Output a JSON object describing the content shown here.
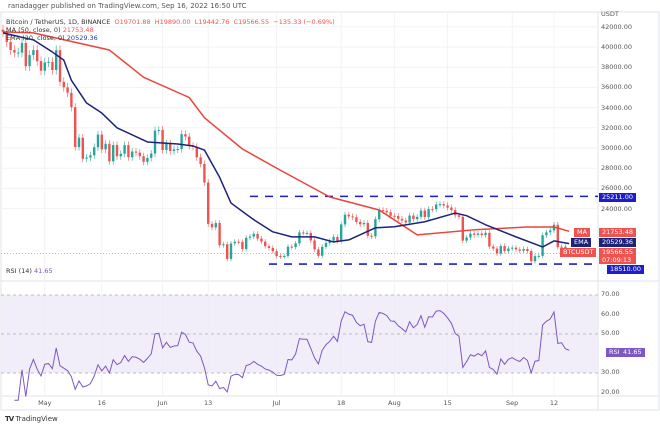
{
  "header": "ranadagger published on TradingView.com, Sep 16, 2022 16:50 UTC",
  "legend": {
    "symbol": "Bitcoin / TetherUS, 1D, BINANCE",
    "o": "O19701.88",
    "h": "H19890.00",
    "l": "L19442.76",
    "c": "C19566.55",
    "chg": "−135.33 (−0.69%)",
    "ma_label": "MA (50, close, 0)",
    "ma_value": "21753.48",
    "ema_label": "EMA (20, close, 0)",
    "ema_value": "20529.36",
    "rsi_label": "RSI (14)",
    "rsi_value": "41.65"
  },
  "currency": "USDT",
  "tags": {
    "resistance": "25211.00",
    "support": "18510.00",
    "ma_tag": "MA",
    "ma": "21753.48",
    "ema_tag": "EMA",
    "ema": "20529.36",
    "sym_tag": "BTCUSDT",
    "price": "19566.55",
    "countdown": "07:09:13",
    "rsi_tag": "RSI",
    "rsi": "41.65"
  },
  "logo": "TradingView",
  "colors": {
    "up": "#26a69a",
    "down": "#ef5350",
    "ma": "#e8453c",
    "ema": "#1b237a",
    "levels": "#1e1ec8",
    "rsi": "#7e57c2",
    "rsi_band": "#ede7f6"
  },
  "chart_data": [
    {
      "type": "candlestick",
      "ylim": [
        17000,
        43000
      ],
      "y_ticks": [
        "42000.00",
        "40000.00",
        "38000.00",
        "36000.00",
        "34000.00",
        "32000.00",
        "30000.00",
        "28000.00",
        "26000.00",
        "24000.00"
      ],
      "x_ticks": [
        [
          "2022-05-01",
          "May"
        ],
        [
          "2022-05-16",
          "16"
        ],
        [
          "2022-06-01",
          "Jun"
        ],
        [
          "2022-06-13",
          "13"
        ],
        [
          "2022-07-01",
          "Jul"
        ],
        [
          "2022-07-18",
          "18"
        ],
        [
          "2022-08-01",
          "Aug"
        ],
        [
          "2022-08-15",
          "15"
        ],
        [
          "2022-09-01",
          "Sep"
        ],
        [
          "2022-09-12",
          "12"
        ]
      ],
      "horizontal_levels": [
        {
          "value": 25211,
          "from": "2022-06-24"
        },
        {
          "value": 18510,
          "from": "2022-06-29"
        }
      ],
      "closes": [
        [
          "2022-04-20",
          41500
        ],
        [
          "2022-04-21",
          40500
        ],
        [
          "2022-04-22",
          39700
        ],
        [
          "2022-04-23",
          39450
        ],
        [
          "2022-04-24",
          39450
        ],
        [
          "2022-04-25",
          40400
        ],
        [
          "2022-04-26",
          38100
        ],
        [
          "2022-04-27",
          39200
        ],
        [
          "2022-04-28",
          39700
        ],
        [
          "2022-04-29",
          38600
        ],
        [
          "2022-04-30",
          37650
        ],
        [
          "2022-05-01",
          38470
        ],
        [
          "2022-05-02",
          38520
        ],
        [
          "2022-05-03",
          37720
        ],
        [
          "2022-05-04",
          39690
        ],
        [
          "2022-05-05",
          36550
        ],
        [
          "2022-05-06",
          36010
        ],
        [
          "2022-05-07",
          35470
        ],
        [
          "2022-05-08",
          34040
        ],
        [
          "2022-05-09",
          30100
        ],
        [
          "2022-05-10",
          31020
        ],
        [
          "2022-05-11",
          28940
        ],
        [
          "2022-05-12",
          29050
        ],
        [
          "2022-05-13",
          29280
        ],
        [
          "2022-05-14",
          30080
        ],
        [
          "2022-05-15",
          31330
        ],
        [
          "2022-05-16",
          29860
        ],
        [
          "2022-05-17",
          30420
        ],
        [
          "2022-05-18",
          28680
        ],
        [
          "2022-05-19",
          30290
        ],
        [
          "2022-05-20",
          29180
        ],
        [
          "2022-05-21",
          29430
        ],
        [
          "2022-05-22",
          30280
        ],
        [
          "2022-05-23",
          29090
        ],
        [
          "2022-05-24",
          29650
        ],
        [
          "2022-05-25",
          29540
        ],
        [
          "2022-05-26",
          29190
        ],
        [
          "2022-05-27",
          28630
        ],
        [
          "2022-05-28",
          29020
        ],
        [
          "2022-05-29",
          29450
        ],
        [
          "2022-05-30",
          31720
        ],
        [
          "2022-05-31",
          31790
        ],
        [
          "2022-06-01",
          29800
        ],
        [
          "2022-06-02",
          30450
        ],
        [
          "2022-06-03",
          29700
        ],
        [
          "2022-06-04",
          29860
        ],
        [
          "2022-06-05",
          29900
        ],
        [
          "2022-06-06",
          31370
        ],
        [
          "2022-06-07",
          31130
        ],
        [
          "2022-06-08",
          30200
        ],
        [
          "2022-06-09",
          30110
        ],
        [
          "2022-06-10",
          29080
        ],
        [
          "2022-06-11",
          28420
        ],
        [
          "2022-06-12",
          26580
        ],
        [
          "2022-06-13",
          22490
        ],
        [
          "2022-06-14",
          22140
        ],
        [
          "2022-06-15",
          22580
        ],
        [
          "2022-06-16",
          20380
        ],
        [
          "2022-06-17",
          20470
        ],
        [
          "2022-06-18",
          19020
        ],
        [
          "2022-06-19",
          20550
        ],
        [
          "2022-06-20",
          20720
        ],
        [
          "2022-06-21",
          20710
        ],
        [
          "2022-06-22",
          19990
        ],
        [
          "2022-06-23",
          21110
        ],
        [
          "2022-06-24",
          21230
        ],
        [
          "2022-06-25",
          21500
        ],
        [
          "2022-06-26",
          21030
        ],
        [
          "2022-06-27",
          20730
        ],
        [
          "2022-06-28",
          20280
        ],
        [
          "2022-06-29",
          20100
        ],
        [
          "2022-06-30",
          19780
        ],
        [
          "2022-07-01",
          19300
        ],
        [
          "2022-07-02",
          19250
        ],
        [
          "2022-07-03",
          19310
        ],
        [
          "2022-07-04",
          20230
        ],
        [
          "2022-07-05",
          20190
        ],
        [
          "2022-07-06",
          20560
        ],
        [
          "2022-07-07",
          21640
        ],
        [
          "2022-07-08",
          21590
        ],
        [
          "2022-07-09",
          21590
        ],
        [
          "2022-07-10",
          20850
        ],
        [
          "2022-07-11",
          19960
        ],
        [
          "2022-07-12",
          19330
        ],
        [
          "2022-07-13",
          20210
        ],
        [
          "2022-07-14",
          20590
        ],
        [
          "2022-07-15",
          20830
        ],
        [
          "2022-07-16",
          21190
        ],
        [
          "2022-07-17",
          20790
        ],
        [
          "2022-07-18",
          22430
        ],
        [
          "2022-07-19",
          23400
        ],
        [
          "2022-07-20",
          23230
        ],
        [
          "2022-07-21",
          23150
        ],
        [
          "2022-07-22",
          22680
        ],
        [
          "2022-07-23",
          22450
        ],
        [
          "2022-07-24",
          22580
        ],
        [
          "2022-07-25",
          21310
        ],
        [
          "2022-07-26",
          21250
        ],
        [
          "2022-07-27",
          22950
        ],
        [
          "2022-07-28",
          23850
        ],
        [
          "2022-07-29",
          23780
        ],
        [
          "2022-07-30",
          23640
        ],
        [
          "2022-07-31",
          23290
        ],
        [
          "2022-08-01",
          23270
        ],
        [
          "2022-08-02",
          22990
        ],
        [
          "2022-08-03",
          22820
        ],
        [
          "2022-08-04",
          22620
        ],
        [
          "2022-08-05",
          23310
        ],
        [
          "2022-08-06",
          22960
        ],
        [
          "2022-08-07",
          23180
        ],
        [
          "2022-08-08",
          23810
        ],
        [
          "2022-08-09",
          23160
        ],
        [
          "2022-08-10",
          23950
        ],
        [
          "2022-08-11",
          23940
        ],
        [
          "2022-08-12",
          24400
        ],
        [
          "2022-08-13",
          24440
        ],
        [
          "2022-08-14",
          24310
        ],
        [
          "2022-08-15",
          24100
        ],
        [
          "2022-08-16",
          23850
        ],
        [
          "2022-08-17",
          23340
        ],
        [
          "2022-08-18",
          23190
        ],
        [
          "2022-08-19",
          20830
        ],
        [
          "2022-08-20",
          21140
        ],
        [
          "2022-08-21",
          21520
        ],
        [
          "2022-08-22",
          21400
        ],
        [
          "2022-08-23",
          21530
        ],
        [
          "2022-08-24",
          21370
        ],
        [
          "2022-08-25",
          21600
        ],
        [
          "2022-08-26",
          20240
        ],
        [
          "2022-08-27",
          20040
        ],
        [
          "2022-08-28",
          19550
        ],
        [
          "2022-08-29",
          20290
        ],
        [
          "2022-08-30",
          19800
        ],
        [
          "2022-08-31",
          20050
        ],
        [
          "2022-09-01",
          20130
        ],
        [
          "2022-09-02",
          19950
        ],
        [
          "2022-09-03",
          19830
        ],
        [
          "2022-09-04",
          20000
        ],
        [
          "2022-09-05",
          19800
        ],
        [
          "2022-09-06",
          18790
        ],
        [
          "2022-09-07",
          19290
        ],
        [
          "2022-09-08",
          19320
        ],
        [
          "2022-09-09",
          21360
        ],
        [
          "2022-09-10",
          21650
        ],
        [
          "2022-09-11",
          21830
        ],
        [
          "2022-09-12",
          22400
        ],
        [
          "2022-09-13",
          20180
        ],
        [
          "2022-09-14",
          20230
        ],
        [
          "2022-09-15",
          19700
        ],
        [
          "2022-09-16",
          19566.55
        ]
      ],
      "ma50": [
        [
          "2022-04-20",
          41500
        ],
        [
          "2022-04-28",
          41400
        ],
        [
          "2022-05-18",
          39700
        ],
        [
          "2022-05-27",
          37000
        ],
        [
          "2022-06-08",
          35000
        ],
        [
          "2022-06-12",
          33000
        ],
        [
          "2022-06-22",
          29900
        ],
        [
          "2022-07-02",
          27800
        ],
        [
          "2022-07-15",
          25150
        ],
        [
          "2022-07-28",
          23860
        ],
        [
          "2022-08-07",
          21400
        ],
        [
          "2022-08-22",
          21900
        ],
        [
          "2022-09-05",
          22180
        ],
        [
          "2022-09-12",
          22180
        ],
        [
          "2022-09-16",
          21753.48
        ]
      ],
      "ema20": [
        [
          "2022-04-20",
          41400
        ],
        [
          "2022-04-28",
          40700
        ],
        [
          "2022-05-03",
          39500
        ],
        [
          "2022-05-06",
          38700
        ],
        [
          "2022-05-08",
          36700
        ],
        [
          "2022-05-12",
          34450
        ],
        [
          "2022-05-16",
          33460
        ],
        [
          "2022-05-20",
          32000
        ],
        [
          "2022-05-28",
          30600
        ],
        [
          "2022-06-01",
          30500
        ],
        [
          "2022-06-05",
          30400
        ],
        [
          "2022-06-09",
          30200
        ],
        [
          "2022-06-12",
          29800
        ],
        [
          "2022-06-16",
          27100
        ],
        [
          "2022-06-19",
          24550
        ],
        [
          "2022-06-25",
          22900
        ],
        [
          "2022-06-30",
          21700
        ],
        [
          "2022-07-05",
          21200
        ],
        [
          "2022-07-11",
          21200
        ],
        [
          "2022-07-16",
          20700
        ],
        [
          "2022-07-20",
          20900
        ],
        [
          "2022-07-27",
          22100
        ],
        [
          "2022-08-01",
          22200
        ],
        [
          "2022-08-09",
          22700
        ],
        [
          "2022-08-17",
          23560
        ],
        [
          "2022-08-20",
          23300
        ],
        [
          "2022-08-25",
          22400
        ],
        [
          "2022-09-02",
          21200
        ],
        [
          "2022-09-09",
          20200
        ],
        [
          "2022-09-12",
          20800
        ],
        [
          "2022-09-16",
          20529.36
        ]
      ]
    },
    {
      "type": "line",
      "title": "RSI (14)",
      "ylim": [
        15,
        78
      ],
      "y_ticks": [
        "70.00",
        "60.00",
        "50.00",
        "30.00",
        "20.00"
      ],
      "band": [
        30,
        70
      ],
      "levels": [
        70,
        50,
        30
      ]
    }
  ]
}
